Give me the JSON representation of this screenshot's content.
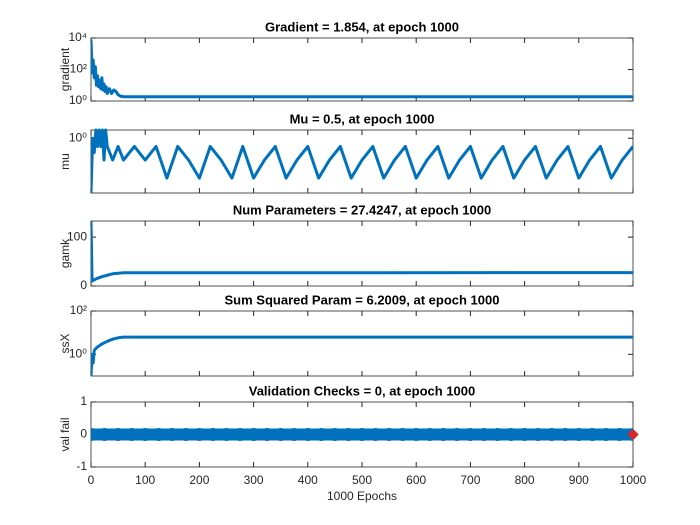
{
  "chart_data": [
    {
      "type": "line",
      "title": "Gradient = 1.854, at epoch 1000",
      "ylabel": "gradient",
      "yscale": "log",
      "xlim": [
        0,
        1000
      ],
      "ylim": [
        1,
        10000
      ],
      "yticks": [
        {
          "value": 1,
          "label": "10⁰"
        },
        {
          "value": 100,
          "label": "10²"
        },
        {
          "value": 10000,
          "label": "10⁴"
        }
      ],
      "series": [
        {
          "color": "#0072bd",
          "x": [
            0,
            2,
            4,
            6,
            8,
            10,
            12,
            14,
            16,
            18,
            20,
            22,
            24,
            26,
            28,
            30,
            34,
            38,
            42,
            46,
            50,
            55,
            60,
            1000
          ],
          "values": [
            8000,
            60,
            400,
            30,
            150,
            10,
            40,
            8,
            20,
            6,
            30,
            5,
            12,
            4,
            8,
            3,
            6,
            3,
            5,
            4,
            2.5,
            2,
            1.854,
            1.854
          ]
        }
      ]
    },
    {
      "type": "line",
      "title": "Mu = 0.5, at epoch 1000",
      "ylabel": "mu",
      "yscale": "log",
      "xlim": [
        0,
        1000
      ],
      "ylim": [
        0.01,
        2
      ],
      "yticks": [
        {
          "value": 1,
          "label": "10⁰"
        }
      ],
      "series": [
        {
          "color": "#0072bd",
          "x": [
            0,
            3,
            6,
            9,
            12,
            15,
            18,
            21,
            24,
            27,
            30,
            40,
            50,
            60,
            80,
            100,
            120,
            140,
            160,
            180,
            200,
            220,
            240,
            260,
            280,
            300,
            320,
            340,
            360,
            380,
            400,
            420,
            440,
            460,
            480,
            500,
            520,
            540,
            560,
            580,
            600,
            620,
            640,
            660,
            680,
            700,
            720,
            740,
            760,
            780,
            800,
            820,
            840,
            860,
            880,
            900,
            920,
            940,
            960,
            980,
            1000
          ],
          "values": [
            0.01,
            1,
            0.3,
            2,
            0.5,
            2,
            0.5,
            2,
            0.16,
            2,
            0.5,
            0.16,
            0.5,
            0.16,
            0.5,
            0.16,
            0.5,
            0.035,
            0.5,
            0.16,
            0.035,
            0.5,
            0.16,
            0.035,
            0.5,
            0.035,
            0.16,
            0.5,
            0.035,
            0.16,
            0.5,
            0.035,
            0.16,
            0.5,
            0.035,
            0.16,
            0.5,
            0.035,
            0.16,
            0.5,
            0.035,
            0.16,
            0.5,
            0.035,
            0.16,
            0.5,
            0.035,
            0.16,
            0.5,
            0.035,
            0.16,
            0.5,
            0.035,
            0.16,
            0.5,
            0.035,
            0.16,
            0.5,
            0.035,
            0.16,
            0.5
          ]
        }
      ]
    },
    {
      "type": "line",
      "title": "Num Parameters = 27.4247, at epoch 1000",
      "ylabel": "gamk",
      "xlim": [
        0,
        1000
      ],
      "ylim": [
        0,
        133
      ],
      "yticks": [
        0,
        100
      ],
      "series": [
        {
          "color": "#0072bd",
          "x": [
            0,
            2,
            5,
            10,
            20,
            30,
            40,
            50,
            60,
            1000
          ],
          "values": [
            133,
            10,
            12,
            15,
            19,
            22,
            25,
            26,
            27,
            27.4247
          ]
        }
      ]
    },
    {
      "type": "line",
      "title": "Sum Squared Param = 6.2009, at epoch 1000",
      "ylabel": "ssX",
      "yscale": "log",
      "xlim": [
        0,
        1000
      ],
      "ylim": [
        0.1,
        100
      ],
      "yticks": [
        {
          "value": 1,
          "label": "10⁰"
        },
        {
          "value": 100,
          "label": "10²"
        }
      ],
      "series": [
        {
          "color": "#0072bd",
          "x": [
            0,
            2,
            4,
            6,
            10,
            20,
            30,
            40,
            50,
            60,
            1000
          ],
          "values": [
            0.1,
            1,
            0.4,
            1.5,
            2,
            3,
            4,
            5,
            5.8,
            6.2009,
            6.2009
          ]
        }
      ]
    },
    {
      "type": "scatter",
      "title": "Validation Checks = 0, at epoch 1000",
      "ylabel": "val fail",
      "xlabel": "1000 Epochs",
      "xlim": [
        0,
        1000
      ],
      "ylim": [
        -1,
        1
      ],
      "yticks": [
        -1,
        0,
        1
      ],
      "xticks": [
        0,
        100,
        200,
        300,
        400,
        500,
        600,
        700,
        800,
        900,
        1000
      ],
      "series": [
        {
          "color": "#0072bd",
          "marker": "circle",
          "x": [
            0,
            25,
            50,
            75,
            100,
            125,
            150,
            175,
            200,
            225,
            250,
            275,
            300,
            325,
            350,
            375,
            400,
            425,
            450,
            475,
            500,
            525,
            550,
            575,
            600,
            625,
            650,
            675,
            700,
            725,
            750,
            775,
            800,
            825,
            850,
            875,
            900,
            925,
            950,
            975,
            1000
          ],
          "values": [
            0,
            0,
            0,
            0,
            0,
            0,
            0,
            0,
            0,
            0,
            0,
            0,
            0,
            0,
            0,
            0,
            0,
            0,
            0,
            0,
            0,
            0,
            0,
            0,
            0,
            0,
            0,
            0,
            0,
            0,
            0,
            0,
            0,
            0,
            0,
            0,
            0,
            0,
            0,
            0,
            0
          ]
        },
        {
          "color": "#d62728",
          "marker": "diamond",
          "x": [
            1000
          ],
          "values": [
            0
          ]
        }
      ]
    }
  ]
}
